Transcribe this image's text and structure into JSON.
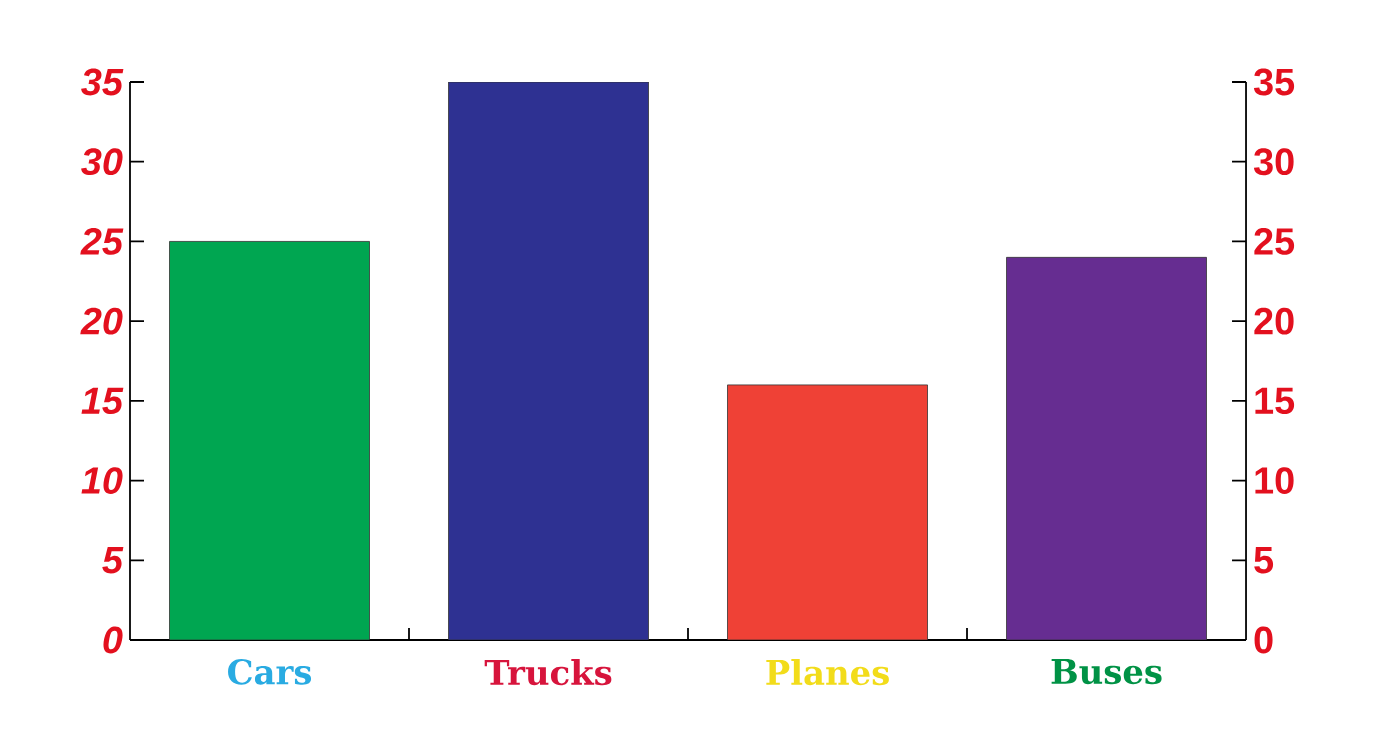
{
  "chart_data": {
    "type": "bar",
    "categories": [
      "Cars",
      "Trucks",
      "Planes",
      "Buses"
    ],
    "values": [
      25,
      35,
      16,
      24
    ],
    "colors": [
      "#00a651",
      "#2e3192",
      "#ef4136",
      "#662d91"
    ],
    "ylim": [
      0,
      35
    ],
    "yticks": [
      0,
      5,
      10,
      15,
      20,
      25,
      30,
      35
    ],
    "y2lim": [
      0,
      35
    ],
    "y2ticks": [
      0,
      5,
      10,
      15,
      20,
      25,
      30,
      35
    ]
  }
}
